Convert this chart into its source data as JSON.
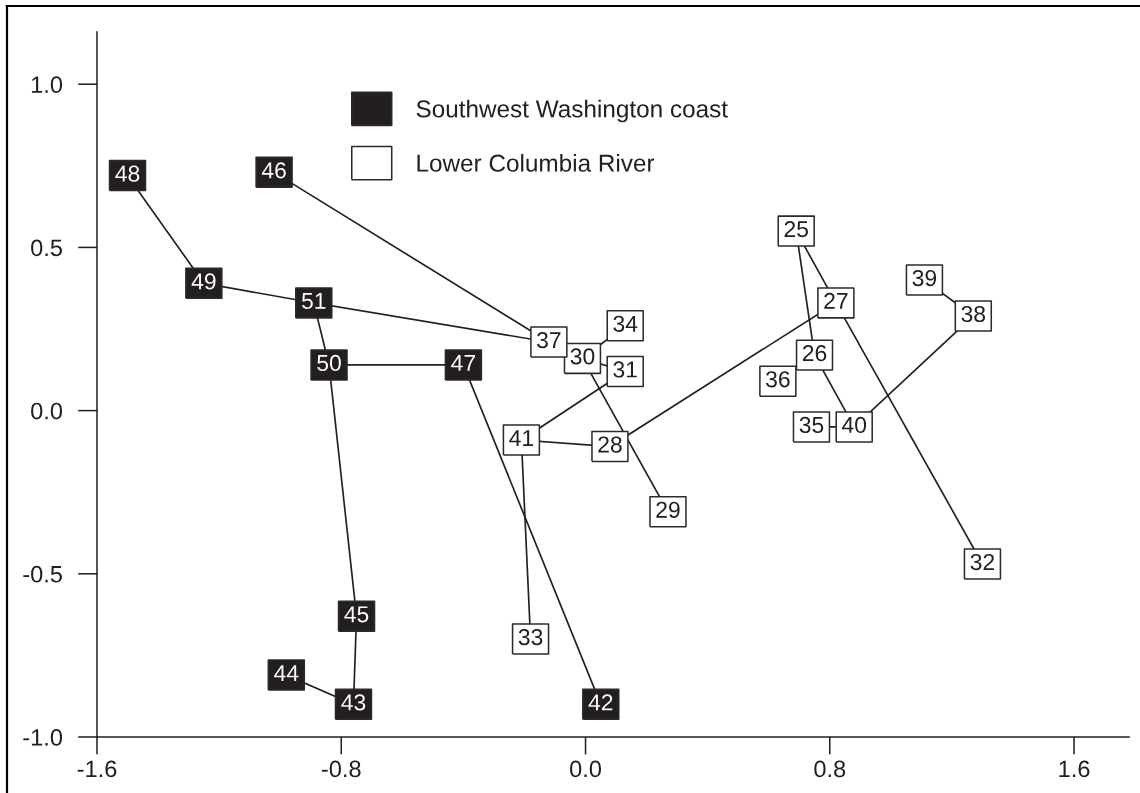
{
  "chart_data": {
    "type": "scatter",
    "legend": "top",
    "xlim": [
      -1.6,
      1.78
    ],
    "ylim": [
      -1.0,
      1.16
    ],
    "xticks": [
      {
        "value": -1.6,
        "label": "-1.6"
      },
      {
        "value": -0.8,
        "label": "-0.8"
      },
      {
        "value": 0,
        "label": "0.0"
      },
      {
        "value": 0.8,
        "label": "0.8"
      },
      {
        "value": 1.6,
        "label": "1.6"
      }
    ],
    "yticks": [
      {
        "value": -1,
        "label": "-1.0"
      },
      {
        "value": -0.5,
        "label": "-0.5"
      },
      {
        "value": 0,
        "label": "0.0"
      },
      {
        "value": 0.5,
        "label": "0.5"
      },
      {
        "value": 1,
        "label": "1.0"
      }
    ],
    "series": [
      {
        "name": "Southwest Washington coast",
        "color": "#231f20",
        "marker": "square",
        "x": [
          0.05,
          -0.76,
          -0.98,
          -0.75,
          -1.02,
          -0.4,
          -1.5,
          -1.25,
          -0.84,
          -0.89
        ],
        "values": [
          -0.9,
          -0.9,
          -0.81,
          -0.63,
          0.73,
          0.14,
          0.72,
          0.39,
          0.14,
          0.33
        ]
      },
      {
        "name": "Lower Columbia River",
        "color": "#ffffff",
        "marker": "square",
        "x": [
          0.69,
          0.75,
          0.82,
          0.08,
          0.27,
          -0.01,
          0.13,
          1.3,
          -0.18,
          0.13,
          0.74,
          0.63,
          -0.12,
          1.27,
          1.11,
          0.88,
          -0.21
        ],
        "values": [
          0.55,
          0.17,
          0.33,
          -0.11,
          -0.31,
          0.16,
          0.12,
          -0.47,
          -0.7,
          0.26,
          -0.05,
          0.09,
          0.21,
          0.29,
          0.4,
          -0.05,
          -0.09
        ]
      },
      {
        "type": "line",
        "color": "#231f20",
        "x": [
          -1.5,
          -1.25
        ],
        "values": [
          0.72,
          0.39
        ]
      },
      {
        "type": "line",
        "color": "#231f20",
        "x": [
          -1.25,
          -0.89
        ],
        "values": [
          0.39,
          0.33
        ]
      },
      {
        "type": "line",
        "color": "#231f20",
        "x": [
          -0.89,
          -0.12
        ],
        "values": [
          0.33,
          0.21
        ]
      },
      {
        "type": "line",
        "color": "#231f20",
        "x": [
          -1.02,
          -0.12
        ],
        "values": [
          0.73,
          0.21
        ]
      },
      {
        "type": "line",
        "color": "#231f20",
        "x": [
          -0.89,
          -0.84
        ],
        "values": [
          0.33,
          0.14
        ]
      },
      {
        "type": "line",
        "color": "#231f20",
        "x": [
          -0.84,
          -0.4
        ],
        "values": [
          0.14,
          0.14
        ]
      },
      {
        "type": "line",
        "color": "#231f20",
        "x": [
          -0.84,
          -0.75
        ],
        "values": [
          0.14,
          -0.63
        ]
      },
      {
        "type": "line",
        "color": "#231f20",
        "x": [
          -0.75,
          -0.76
        ],
        "values": [
          -0.63,
          -0.9
        ]
      },
      {
        "type": "line",
        "color": "#231f20",
        "x": [
          -0.98,
          -0.76
        ],
        "values": [
          -0.81,
          -0.9
        ]
      },
      {
        "type": "line",
        "color": "#231f20",
        "x": [
          -0.4,
          0.05
        ],
        "values": [
          0.14,
          -0.9
        ]
      },
      {
        "type": "line",
        "color": "#231f20",
        "x": [
          -0.01,
          0.13
        ],
        "values": [
          0.16,
          0.26
        ]
      },
      {
        "type": "line",
        "color": "#231f20",
        "x": [
          -0.01,
          0.13
        ],
        "values": [
          0.16,
          0.12
        ]
      },
      {
        "type": "line",
        "color": "#231f20",
        "x": [
          -0.01,
          0.27
        ],
        "values": [
          0.16,
          -0.31
        ]
      },
      {
        "type": "line",
        "color": "#231f20",
        "x": [
          -0.21,
          0.13
        ],
        "values": [
          -0.09,
          0.12
        ]
      },
      {
        "type": "line",
        "color": "#231f20",
        "x": [
          -0.21,
          0.08
        ],
        "values": [
          -0.09,
          -0.11
        ]
      },
      {
        "type": "line",
        "color": "#231f20",
        "x": [
          -0.21,
          -0.18
        ],
        "values": [
          -0.09,
          -0.7
        ]
      },
      {
        "type": "line",
        "color": "#231f20",
        "x": [
          0.08,
          0.82
        ],
        "values": [
          -0.11,
          0.33
        ]
      },
      {
        "type": "line",
        "color": "#231f20",
        "x": [
          0.69,
          0.75
        ],
        "values": [
          0.55,
          0.17
        ]
      },
      {
        "type": "line",
        "color": "#231f20",
        "x": [
          0.69,
          0.82
        ],
        "values": [
          0.55,
          0.33
        ]
      },
      {
        "type": "line",
        "color": "#231f20",
        "x": [
          0.82,
          1.3
        ],
        "values": [
          0.33,
          -0.47
        ]
      },
      {
        "type": "line",
        "color": "#231f20",
        "x": [
          0.75,
          0.88
        ],
        "values": [
          0.17,
          -0.05
        ]
      },
      {
        "type": "line",
        "color": "#231f20",
        "x": [
          0.74,
          0.88
        ],
        "values": [
          -0.05,
          -0.05
        ]
      },
      {
        "type": "line",
        "color": "#231f20",
        "x": [
          0.88,
          1.27
        ],
        "values": [
          -0.05,
          0.29
        ]
      },
      {
        "type": "line",
        "color": "#231f20",
        "x": [
          1.27,
          1.11
        ],
        "values": [
          0.29,
          0.4
        ]
      }
    ],
    "annotations": [
      {
        "text": "25",
        "x": 0.69,
        "y": 0.55
      },
      {
        "text": "26",
        "x": 0.75,
        "y": 0.17
      },
      {
        "text": "27",
        "x": 0.82,
        "y": 0.33
      },
      {
        "text": "28",
        "x": 0.08,
        "y": -0.11
      },
      {
        "text": "29",
        "x": 0.27,
        "y": -0.31
      },
      {
        "text": "30",
        "x": -0.01,
        "y": 0.16
      },
      {
        "text": "31",
        "x": 0.13,
        "y": 0.12
      },
      {
        "text": "32",
        "x": 1.3,
        "y": -0.47
      },
      {
        "text": "33",
        "x": -0.18,
        "y": -0.7
      },
      {
        "text": "34",
        "x": 0.13,
        "y": 0.26
      },
      {
        "text": "35",
        "x": 0.74,
        "y": -0.05
      },
      {
        "text": "36",
        "x": 0.63,
        "y": 0.09
      },
      {
        "text": "37",
        "x": -0.12,
        "y": 0.21
      },
      {
        "text": "38",
        "x": 1.27,
        "y": 0.29
      },
      {
        "text": "39",
        "x": 1.11,
        "y": 0.4
      },
      {
        "text": "40",
        "x": 0.88,
        "y": -0.05
      },
      {
        "text": "41",
        "x": -0.21,
        "y": -0.09
      },
      {
        "text": "42",
        "x": 0.05,
        "y": -0.9
      },
      {
        "text": "43",
        "x": -0.76,
        "y": -0.9
      },
      {
        "text": "44",
        "x": -0.98,
        "y": -0.81
      },
      {
        "text": "45",
        "x": -0.75,
        "y": -0.63
      },
      {
        "text": "46",
        "x": -1.02,
        "y": 0.73
      },
      {
        "text": "47",
        "x": -0.4,
        "y": 0.14
      },
      {
        "text": "48",
        "x": -1.5,
        "y": 0.72
      },
      {
        "text": "49",
        "x": -1.25,
        "y": 0.39
      },
      {
        "text": "50",
        "x": -0.84,
        "y": 0.14
      },
      {
        "text": "51",
        "x": -0.89,
        "y": 0.33
      }
    ]
  }
}
